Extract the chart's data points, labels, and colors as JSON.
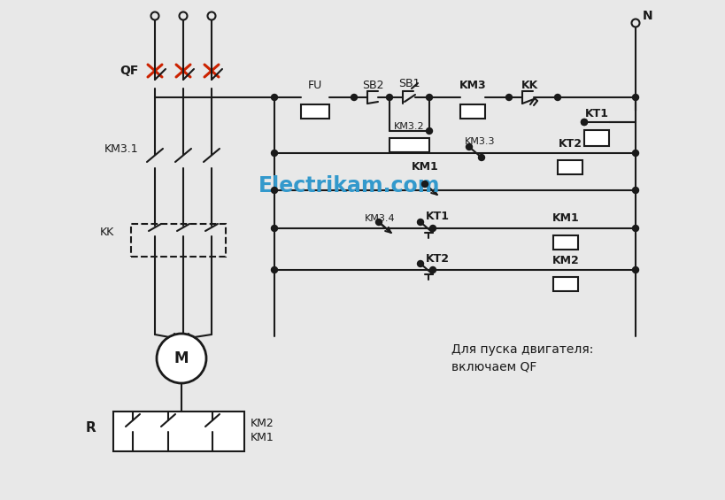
{
  "bg_color": "#e8e8e8",
  "line_color": "#1a1a1a",
  "red_color": "#cc2200",
  "blue_color": "#3399cc",
  "white": "#ffffff",
  "title_text": "Electrikam.com",
  "desc_text1": "Для пуска двигателя:",
  "desc_text2": "включаем QF",
  "label_QF": "QF",
  "label_FU": "FU",
  "label_SB2": "SB2",
  "label_SB1": "SB1",
  "label_KM3": "KM3",
  "label_KK": "KK",
  "label_KT1_coil": "KT1",
  "label_KM3_2": "KM3.2",
  "label_KM3_3": "KM3.3",
  "label_KM3_4": "KM3.4",
  "label_KT2_coil": "KT2",
  "label_KM1_coil": "KM1",
  "label_KT1_cont": "KT1",
  "label_KM1_cont": "KM1",
  "label_KT2_cont": "KT2",
  "label_KM2_coil": "KM2",
  "label_KM3_1": "KM3.1",
  "label_KK_box": "KK",
  "label_N": "N",
  "label_R": "R",
  "label_M": "M",
  "label_KM1_bot": "KM1",
  "label_KM2_bot": "KM2",
  "label_KM1_row": "KM1"
}
